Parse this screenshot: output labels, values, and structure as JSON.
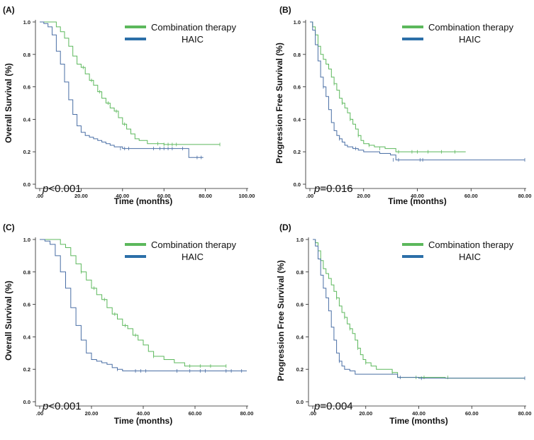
{
  "figure": {
    "colors": {
      "combination": "#5cb85c",
      "haic": "#4a6fa5",
      "legend_combination": "#5cb85c",
      "legend_haic": "#2c6fa8"
    }
  },
  "chart_data": [
    {
      "type": "line",
      "panel": "(A)",
      "ylabel": "Overall Survival (%)",
      "xlabel": "Time (months)",
      "xlim": [
        0,
        100
      ],
      "ylim": [
        0,
        1
      ],
      "xticks": [
        0,
        20,
        40,
        60,
        80,
        100
      ],
      "xtick_labels": [
        ".00",
        "20.00",
        "40.00",
        "60.00",
        "80.00",
        "100.00"
      ],
      "yticks": [
        0,
        0.2,
        0.4,
        0.6,
        0.8,
        1.0
      ],
      "ytick_labels": [
        "0.0",
        "0.2",
        "0.4",
        "0.6",
        "0.8",
        "1.0"
      ],
      "legend": [
        "Combination therapy",
        "HAIC"
      ],
      "pvalue": {
        "p": "p",
        "rest": "<0.001"
      },
      "series": [
        {
          "name": "Combination therapy",
          "x": [
            0,
            6,
            8,
            10,
            12,
            14,
            16,
            18,
            20,
            22,
            24,
            26,
            28,
            30,
            32,
            34,
            36,
            38,
            40,
            42,
            44,
            46,
            48,
            52,
            56,
            60,
            70,
            87
          ],
          "y": [
            1.0,
            1.0,
            0.97,
            0.94,
            0.9,
            0.85,
            0.79,
            0.74,
            0.72,
            0.68,
            0.64,
            0.61,
            0.57,
            0.53,
            0.5,
            0.47,
            0.45,
            0.41,
            0.37,
            0.34,
            0.31,
            0.28,
            0.27,
            0.25,
            0.25,
            0.245,
            0.245,
            0.245
          ],
          "censored": [
            [
              21,
              0.72
            ],
            [
              25,
              0.64
            ],
            [
              29,
              0.57
            ],
            [
              33,
              0.5
            ],
            [
              37,
              0.45
            ],
            [
              41,
              0.37
            ],
            [
              57,
              0.25
            ],
            [
              60,
              0.245
            ],
            [
              62,
              0.245
            ],
            [
              64,
              0.245
            ],
            [
              66,
              0.245
            ],
            [
              87,
              0.245
            ]
          ]
        },
        {
          "name": "HAIC",
          "x": [
            0,
            2,
            4,
            6,
            8,
            10,
            12,
            14,
            16,
            18,
            20,
            22,
            24,
            26,
            28,
            30,
            32,
            34,
            36,
            40,
            44,
            60,
            72,
            79
          ],
          "y": [
            1.0,
            0.99,
            0.97,
            0.92,
            0.82,
            0.74,
            0.63,
            0.52,
            0.43,
            0.36,
            0.32,
            0.3,
            0.29,
            0.28,
            0.27,
            0.26,
            0.25,
            0.24,
            0.23,
            0.22,
            0.22,
            0.22,
            0.165,
            0.165
          ],
          "censored": [
            [
              39,
              0.22
            ],
            [
              41,
              0.22
            ],
            [
              43,
              0.22
            ],
            [
              55,
              0.22
            ],
            [
              58,
              0.22
            ],
            [
              60,
              0.22
            ],
            [
              62,
              0.22
            ],
            [
              64,
              0.22
            ],
            [
              69,
              0.22
            ],
            [
              76,
              0.165
            ],
            [
              78,
              0.165
            ]
          ]
        }
      ]
    },
    {
      "type": "line",
      "panel": "(B)",
      "ylabel": "Progression Free Survival (%)",
      "xlabel": "Time (months)",
      "xlim": [
        0,
        80
      ],
      "ylim": [
        0,
        1
      ],
      "xticks": [
        0,
        20,
        40,
        60,
        80
      ],
      "xtick_labels": [
        ".00",
        "20.00",
        "40.00",
        "60.00",
        "80.00"
      ],
      "yticks": [
        0,
        0.2,
        0.4,
        0.6,
        0.8,
        1.0
      ],
      "ytick_labels": [
        "0.0",
        "0.2",
        "0.4",
        "0.6",
        "0.8",
        "1.0"
      ],
      "legend": [
        "Combination therapy",
        "HAIC"
      ],
      "pvalue": {
        "p": "p",
        "rest": "=0.016"
      },
      "series": [
        {
          "name": "Combination therapy",
          "x": [
            0,
            1,
            2,
            3,
            4,
            5,
            6,
            7,
            8,
            9,
            10,
            11,
            12,
            13,
            14,
            15,
            16,
            17,
            18,
            19,
            20,
            22,
            24,
            28,
            32,
            40,
            58
          ],
          "y": [
            1.0,
            0.97,
            0.92,
            0.85,
            0.8,
            0.77,
            0.74,
            0.71,
            0.66,
            0.62,
            0.58,
            0.53,
            0.5,
            0.47,
            0.44,
            0.4,
            0.37,
            0.34,
            0.3,
            0.27,
            0.25,
            0.24,
            0.23,
            0.22,
            0.2,
            0.2,
            0.2
          ],
          "censored": [
            [
              9,
              0.62
            ],
            [
              12,
              0.5
            ],
            [
              15,
              0.4
            ],
            [
              18,
              0.3
            ],
            [
              22,
              0.24
            ],
            [
              26,
              0.22
            ],
            [
              33,
              0.2
            ],
            [
              38,
              0.2
            ],
            [
              40,
              0.2
            ],
            [
              44,
              0.2
            ],
            [
              49,
              0.2
            ],
            [
              54,
              0.2
            ]
          ]
        },
        {
          "name": "HAIC",
          "x": [
            0,
            1,
            2,
            3,
            4,
            5,
            6,
            7,
            8,
            9,
            10,
            11,
            12,
            13,
            14,
            16,
            18,
            20,
            22,
            26,
            30,
            32,
            40,
            80
          ],
          "y": [
            1.0,
            0.95,
            0.86,
            0.76,
            0.66,
            0.6,
            0.54,
            0.46,
            0.38,
            0.33,
            0.3,
            0.28,
            0.26,
            0.24,
            0.23,
            0.22,
            0.21,
            0.2,
            0.2,
            0.19,
            0.18,
            0.15,
            0.15,
            0.15
          ],
          "censored": [
            [
              5,
              0.6
            ],
            [
              11,
              0.28
            ],
            [
              17,
              0.22
            ],
            [
              31,
              0.15
            ],
            [
              33,
              0.15
            ],
            [
              41,
              0.15
            ],
            [
              42,
              0.15
            ],
            [
              80,
              0.15
            ]
          ]
        }
      ]
    },
    {
      "type": "line",
      "panel": "(C)",
      "ylabel": "Overall Survival (%)",
      "xlabel": "Time (months)",
      "xlim": [
        0,
        80
      ],
      "ylim": [
        0,
        1
      ],
      "xticks": [
        0,
        20,
        40,
        60,
        80
      ],
      "xtick_labels": [
        ".00",
        "20.00",
        "40.00",
        "60.00",
        "80.00"
      ],
      "yticks": [
        0,
        0.2,
        0.4,
        0.6,
        0.8,
        1.0
      ],
      "ytick_labels": [
        "0.0",
        "0.2",
        "0.4",
        "0.6",
        "0.8",
        "1.0"
      ],
      "legend": [
        "Combination therapy",
        "HAIC"
      ],
      "pvalue": {
        "p": "p",
        "rest": "<0.001"
      },
      "series": [
        {
          "name": "Combination therapy",
          "x": [
            0,
            6,
            8,
            10,
            12,
            14,
            16,
            18,
            20,
            22,
            24,
            26,
            28,
            30,
            32,
            34,
            36,
            38,
            40,
            42,
            44,
            48,
            52,
            56,
            60,
            65,
            72
          ],
          "y": [
            1.0,
            1.0,
            0.97,
            0.95,
            0.9,
            0.85,
            0.8,
            0.75,
            0.7,
            0.66,
            0.63,
            0.58,
            0.54,
            0.51,
            0.47,
            0.45,
            0.41,
            0.38,
            0.35,
            0.31,
            0.28,
            0.26,
            0.24,
            0.22,
            0.22,
            0.22,
            0.22
          ],
          "censored": [
            [
              16,
              0.8
            ],
            [
              21,
              0.7
            ],
            [
              25,
              0.63
            ],
            [
              29,
              0.54
            ],
            [
              33,
              0.47
            ],
            [
              37,
              0.41
            ],
            [
              44,
              0.28
            ],
            [
              58,
              0.22
            ],
            [
              62,
              0.22
            ],
            [
              66,
              0.22
            ],
            [
              72,
              0.22
            ]
          ]
        },
        {
          "name": "HAIC",
          "x": [
            0,
            2,
            4,
            6,
            8,
            10,
            12,
            14,
            16,
            18,
            20,
            22,
            24,
            26,
            28,
            30,
            32,
            40,
            60,
            80
          ],
          "y": [
            1.0,
            0.99,
            0.97,
            0.9,
            0.8,
            0.7,
            0.58,
            0.47,
            0.38,
            0.3,
            0.26,
            0.25,
            0.24,
            0.23,
            0.21,
            0.2,
            0.19,
            0.19,
            0.19,
            0.19
          ],
          "censored": [
            [
              30,
              0.2
            ],
            [
              37,
              0.19
            ],
            [
              39,
              0.19
            ],
            [
              41,
              0.19
            ],
            [
              53,
              0.19
            ],
            [
              58,
              0.19
            ],
            [
              62,
              0.19
            ],
            [
              64,
              0.19
            ],
            [
              72,
              0.19
            ],
            [
              74,
              0.19
            ],
            [
              78,
              0.19
            ]
          ]
        }
      ]
    },
    {
      "type": "line",
      "panel": "(D)",
      "ylabel": "Progression Free Survival (%)",
      "xlabel": "Time (months)",
      "xlim": [
        0,
        80
      ],
      "ylim": [
        0,
        1
      ],
      "xticks": [
        0,
        20,
        40,
        60,
        80
      ],
      "xtick_labels": [
        ".00",
        "20.00",
        "40.00",
        "60.00",
        "80.00"
      ],
      "yticks": [
        0,
        0.2,
        0.4,
        0.6,
        0.8,
        1.0
      ],
      "ytick_labels": [
        "0.0",
        "0.2",
        "0.4",
        "0.6",
        "0.8",
        "1.0"
      ],
      "legend": [
        "Combination therapy",
        "HAIC"
      ],
      "pvalue": {
        "p": "p",
        "rest": "=0.004"
      },
      "series": [
        {
          "name": "Combination therapy",
          "x": [
            0,
            1,
            2,
            3,
            4,
            5,
            6,
            7,
            8,
            9,
            10,
            11,
            12,
            13,
            14,
            15,
            16,
            17,
            18,
            19,
            20,
            22,
            24,
            30,
            32,
            50,
            80
          ],
          "y": [
            1.0,
            0.98,
            0.93,
            0.87,
            0.82,
            0.79,
            0.76,
            0.72,
            0.68,
            0.64,
            0.59,
            0.55,
            0.52,
            0.48,
            0.45,
            0.42,
            0.38,
            0.33,
            0.29,
            0.26,
            0.24,
            0.22,
            0.2,
            0.18,
            0.15,
            0.145,
            0.145
          ],
          "censored": [
            [
              9,
              0.64
            ],
            [
              12,
              0.52
            ],
            [
              14,
              0.45
            ],
            [
              17,
              0.33
            ],
            [
              20,
              0.24
            ],
            [
              30,
              0.18
            ],
            [
              39,
              0.15
            ],
            [
              42,
              0.15
            ],
            [
              51,
              0.15
            ]
          ]
        },
        {
          "name": "HAIC",
          "x": [
            0,
            1,
            2,
            3,
            4,
            5,
            6,
            7,
            8,
            9,
            10,
            11,
            12,
            14,
            16,
            20,
            24,
            28,
            32,
            40,
            80
          ],
          "y": [
            1.0,
            0.96,
            0.88,
            0.78,
            0.7,
            0.64,
            0.56,
            0.46,
            0.38,
            0.3,
            0.25,
            0.22,
            0.2,
            0.19,
            0.17,
            0.17,
            0.17,
            0.17,
            0.15,
            0.145,
            0.145
          ],
          "censored": [
            [
              10,
              0.25
            ],
            [
              33,
              0.15
            ],
            [
              41,
              0.145
            ],
            [
              80,
              0.145
            ]
          ]
        }
      ]
    }
  ]
}
